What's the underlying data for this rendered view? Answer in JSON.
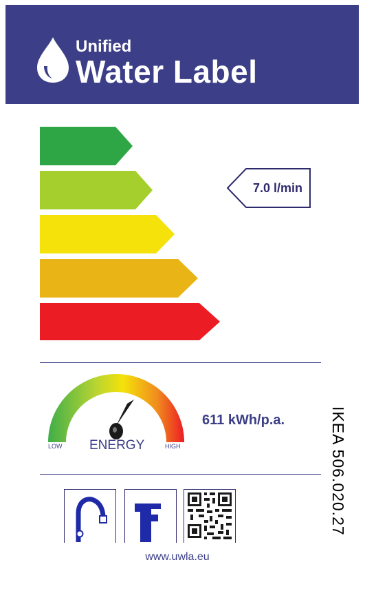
{
  "header": {
    "brand_small": "Unified",
    "brand_big": "Water Label",
    "background_color": "#3c3f87",
    "logo_icon": "water-drop-icon"
  },
  "rating": {
    "classes": [
      {
        "color": "#2ea646"
      },
      {
        "color": "#a4cf2c"
      },
      {
        "color": "#f4e20a"
      },
      {
        "color": "#e9b415"
      },
      {
        "color": "#ec1c24"
      }
    ],
    "selected_class_index": 1,
    "flow_value": "7.0 l/min"
  },
  "energy": {
    "low_label": "LOW",
    "center_label": "ENERGY",
    "high_label": "HIGH",
    "value": "611 kWh/p.a.",
    "gauge_level": 0.62
  },
  "product": {
    "code": "IKEA   506.020.27"
  },
  "icons": [
    {
      "name": "tap-icon"
    },
    {
      "name": "mixer-tap-icon"
    },
    {
      "name": "qr-code-icon"
    }
  ],
  "footer": {
    "url": "www.uwla.eu"
  }
}
